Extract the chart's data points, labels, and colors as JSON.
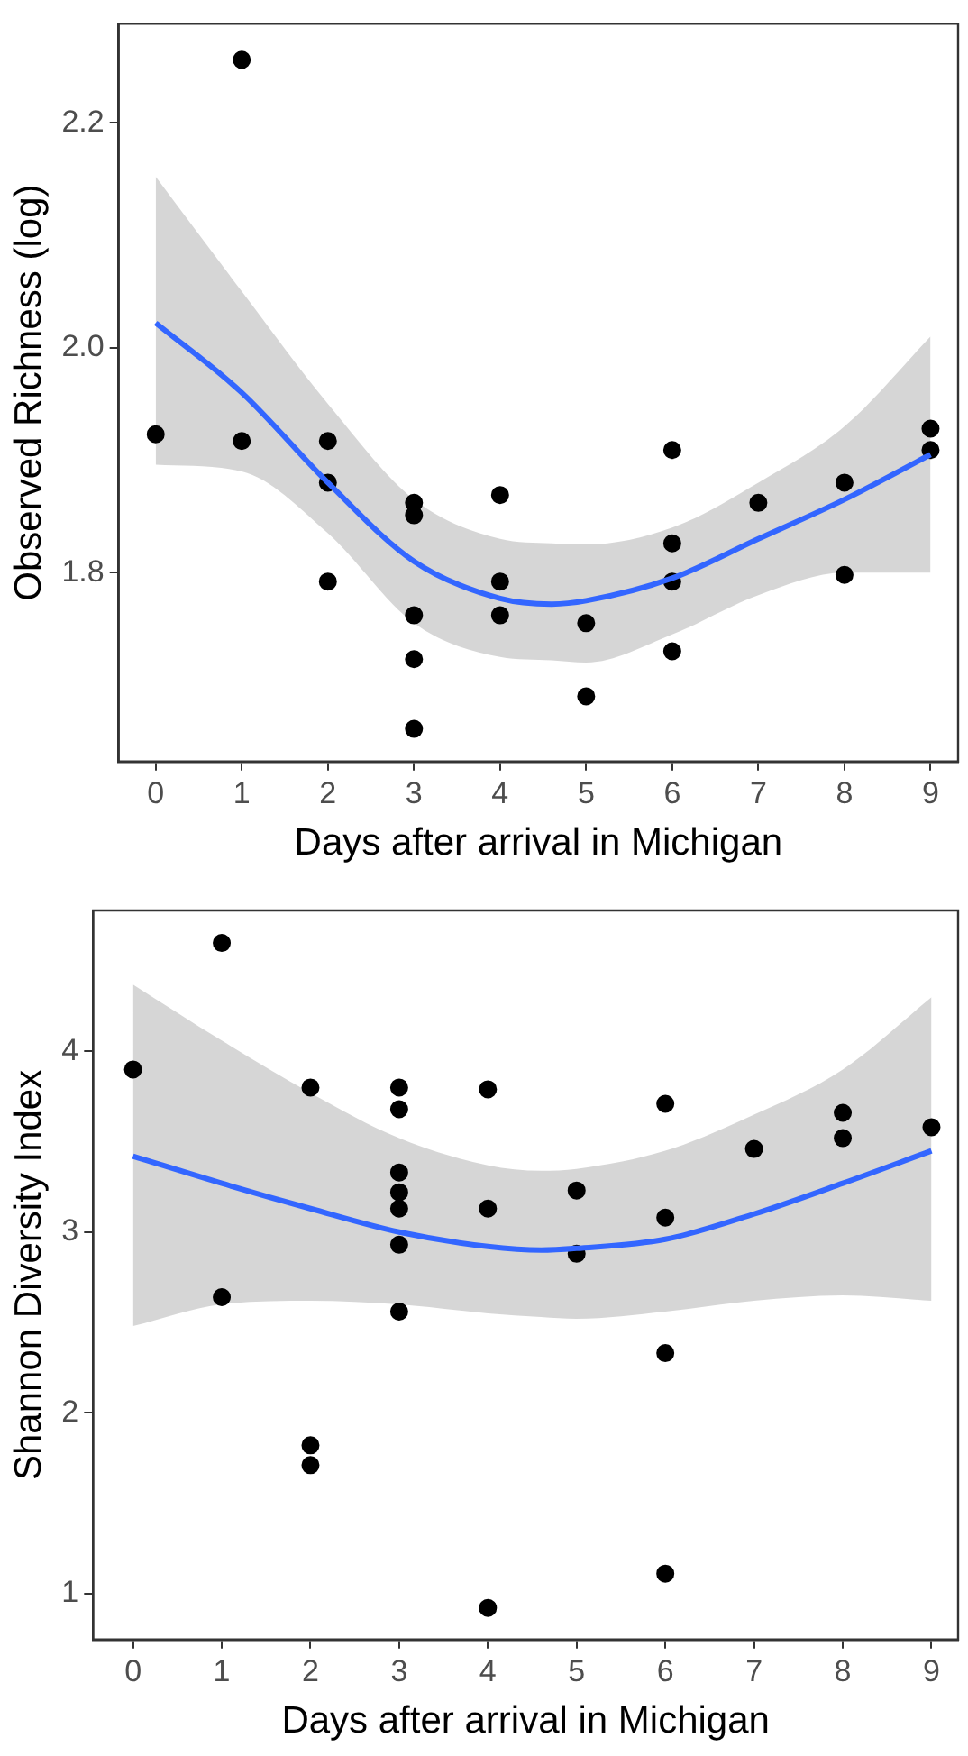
{
  "chart_data": [
    {
      "type": "scatter",
      "xlabel": "Days after arrival in Michigan",
      "ylabel": "Observed Richness (log)",
      "xlim": [
        -0.43,
        9.32
      ],
      "xticks": [
        0,
        1,
        2,
        3,
        4,
        5,
        6,
        7,
        8,
        9
      ],
      "ylim": [
        1.632,
        2.288
      ],
      "yticks": [
        {
          "value": 1.8,
          "label": "1.8"
        },
        {
          "value": 2.0,
          "label": "2.0"
        },
        {
          "value": 2.2,
          "label": "2.2"
        }
      ],
      "grid": false,
      "legend": false,
      "series": [
        {
          "marker": "circle",
          "color": "#000000",
          "x": [
            0,
            1,
            1,
            2,
            2,
            2,
            3,
            3,
            3,
            3,
            3,
            4,
            4,
            4,
            5,
            5,
            6,
            6,
            6,
            6,
            7,
            8,
            8,
            9,
            9
          ],
          "values": [
            1.923,
            2.256,
            1.917,
            1.917,
            1.88,
            1.792,
            1.862,
            1.851,
            1.762,
            1.723,
            1.661,
            1.869,
            1.792,
            1.762,
            1.755,
            1.69,
            1.909,
            1.826,
            1.792,
            1.73,
            1.862,
            1.88,
            1.798,
            1.928,
            1.909
          ]
        },
        {
          "type": "line",
          "marker": "none",
          "color": "#3366ff",
          "line_style": "solid",
          "x": [
            0,
            1,
            2,
            3,
            4,
            4.6,
            5,
            6,
            7,
            8,
            9
          ],
          "values": [
            2.022,
            1.96,
            1.88,
            1.81,
            1.777,
            1.772,
            1.775,
            1.795,
            1.83,
            1.865,
            1.905
          ],
          "lower": [
            1.896,
            1.89,
            1.835,
            1.755,
            1.725,
            1.722,
            1.72,
            1.745,
            1.78,
            1.8,
            1.8
          ],
          "upper": [
            2.152,
            2.05,
            1.95,
            1.865,
            1.83,
            1.826,
            1.825,
            1.84,
            1.88,
            1.93,
            2.01
          ]
        }
      ]
    },
    {
      "type": "scatter",
      "xlabel": "Days after arrival in Michigan",
      "ylabel": "Shannon Diversity Index",
      "xlim": [
        -0.45,
        9.3
      ],
      "xticks": [
        0,
        1,
        2,
        3,
        4,
        5,
        6,
        7,
        8,
        9
      ],
      "ylim": [
        0.745,
        4.78
      ],
      "yticks": [
        1,
        2,
        3,
        4
      ],
      "grid": false,
      "legend": false,
      "series": [
        {
          "marker": "circle",
          "color": "#000000",
          "x": [
            0,
            1,
            1,
            2,
            2,
            2,
            3,
            3,
            3,
            3,
            3,
            3,
            3,
            4,
            4,
            4,
            5,
            5,
            6,
            6,
            6,
            6,
            7,
            8,
            8,
            9
          ],
          "values": [
            3.9,
            4.6,
            2.64,
            3.8,
            1.82,
            1.71,
            3.8,
            3.68,
            3.33,
            3.22,
            3.13,
            2.93,
            2.56,
            3.79,
            3.13,
            0.92,
            3.23,
            2.88,
            3.71,
            3.08,
            2.33,
            1.11,
            3.46,
            3.66,
            3.52,
            3.58
          ]
        },
        {
          "type": "line",
          "marker": "none",
          "color": "#3366ff",
          "line_style": "solid",
          "x": [
            0,
            1,
            2,
            3,
            4,
            4.6,
            5,
            6,
            7,
            8,
            9
          ],
          "values": [
            3.42,
            3.27,
            3.13,
            3.0,
            2.92,
            2.9,
            2.91,
            2.96,
            3.1,
            3.27,
            3.45
          ],
          "lower": [
            2.48,
            2.6,
            2.62,
            2.6,
            2.55,
            2.53,
            2.52,
            2.56,
            2.62,
            2.65,
            2.62
          ],
          "upper": [
            4.37,
            4.06,
            3.77,
            3.52,
            3.37,
            3.34,
            3.35,
            3.45,
            3.65,
            3.9,
            4.3
          ]
        }
      ]
    }
  ]
}
